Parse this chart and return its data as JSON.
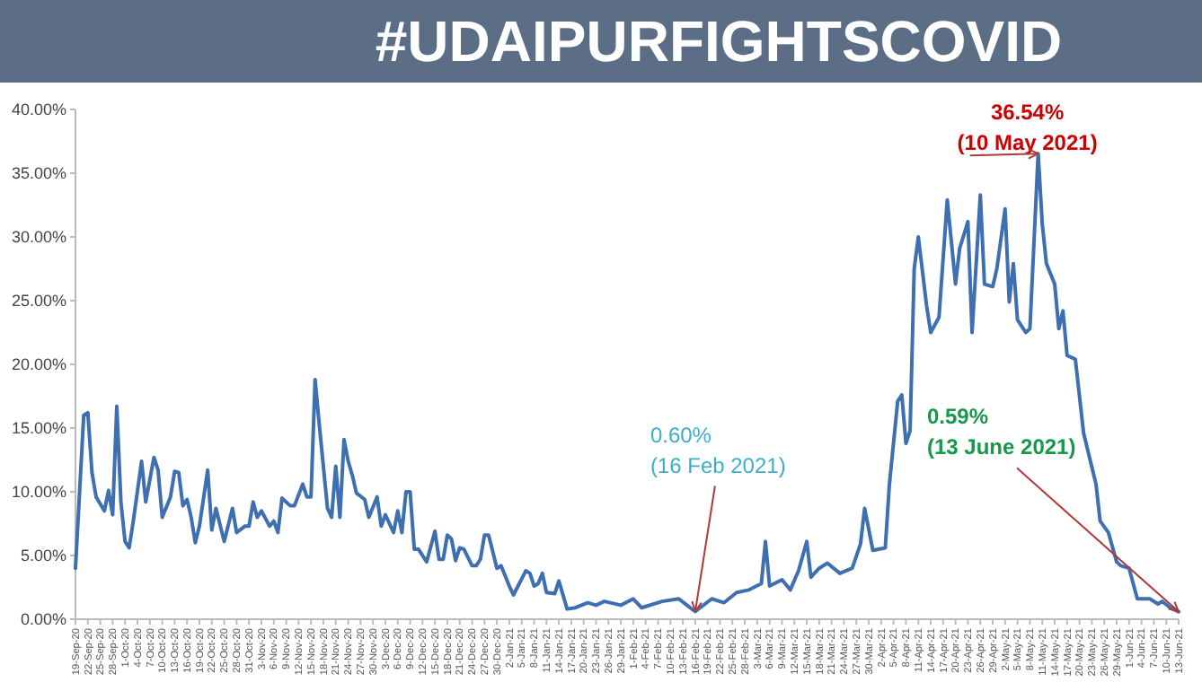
{
  "chart_data": {
    "type": "line",
    "title": "#UDAIPURFIGHTSCOVID",
    "x": [
      "2020-09-19",
      "2020-09-21",
      "2020-09-22",
      "2020-09-23",
      "2020-09-24",
      "2020-09-26",
      "2020-09-27",
      "2020-09-28",
      "2020-09-29",
      "2020-09-30",
      "2020-10-01",
      "2020-10-02",
      "2020-10-03",
      "2020-10-05",
      "2020-10-06",
      "2020-10-08",
      "2020-10-09",
      "2020-10-10",
      "2020-10-12",
      "2020-10-13",
      "2020-10-14",
      "2020-10-15",
      "2020-10-16",
      "2020-10-17",
      "2020-10-18",
      "2020-10-19",
      "2020-10-21",
      "2020-10-22",
      "2020-10-23",
      "2020-10-25",
      "2020-10-27",
      "2020-10-28",
      "2020-10-30",
      "2020-10-31",
      "2020-11-01",
      "2020-11-02",
      "2020-11-03",
      "2020-11-05",
      "2020-11-06",
      "2020-11-07",
      "2020-11-08",
      "2020-11-10",
      "2020-11-11",
      "2020-11-13",
      "2020-11-14",
      "2020-11-15",
      "2020-11-16",
      "2020-11-17",
      "2020-11-19",
      "2020-11-20",
      "2020-11-21",
      "2020-11-22",
      "2020-11-23",
      "2020-11-24",
      "2020-11-25",
      "2020-11-26",
      "2020-11-28",
      "2020-11-29",
      "2020-12-01",
      "2020-12-02",
      "2020-12-03",
      "2020-12-05",
      "2020-12-06",
      "2020-12-07",
      "2020-12-08",
      "2020-12-09",
      "2020-12-10",
      "2020-12-11",
      "2020-12-13",
      "2020-12-15",
      "2020-12-16",
      "2020-12-17",
      "2020-12-18",
      "2020-12-19",
      "2020-12-20",
      "2020-12-21",
      "2020-12-22",
      "2020-12-24",
      "2020-12-25",
      "2020-12-26",
      "2020-12-27",
      "2020-12-28",
      "2020-12-30",
      "2020-12-31",
      "2021-01-02",
      "2021-01-03",
      "2021-01-06",
      "2021-01-07",
      "2021-01-08",
      "2021-01-09",
      "2021-01-10",
      "2021-01-11",
      "2021-01-13",
      "2021-01-14",
      "2021-01-16",
      "2021-01-18",
      "2021-01-21",
      "2021-01-23",
      "2021-01-25",
      "2021-01-29",
      "2021-02-01",
      "2021-02-03",
      "2021-02-08",
      "2021-02-12",
      "2021-02-14",
      "2021-02-16",
      "2021-02-20",
      "2021-02-23",
      "2021-02-26",
      "2021-03-01",
      "2021-03-04",
      "2021-03-05",
      "2021-03-06",
      "2021-03-09",
      "2021-03-11",
      "2021-03-13",
      "2021-03-15",
      "2021-03-16",
      "2021-03-18",
      "2021-03-20",
      "2021-03-23",
      "2021-03-26",
      "2021-03-28",
      "2021-03-29",
      "2021-03-31",
      "2021-04-03",
      "2021-04-04",
      "2021-04-06",
      "2021-04-07",
      "2021-04-08",
      "2021-04-09",
      "2021-04-10",
      "2021-04-11",
      "2021-04-13",
      "2021-04-14",
      "2021-04-16",
      "2021-04-18",
      "2021-04-20",
      "2021-04-21",
      "2021-04-23",
      "2021-04-24",
      "2021-04-26",
      "2021-04-27",
      "2021-04-29",
      "2021-04-30",
      "2021-05-02",
      "2021-05-03",
      "2021-05-04",
      "2021-05-05",
      "2021-05-07",
      "2021-05-08",
      "2021-05-10",
      "2021-05-11",
      "2021-05-12",
      "2021-05-14",
      "2021-05-15",
      "2021-05-16",
      "2021-05-17",
      "2021-05-19",
      "2021-05-21",
      "2021-05-24",
      "2021-05-25",
      "2021-05-27",
      "2021-05-29",
      "2021-05-30",
      "2021-06-01",
      "2021-06-03",
      "2021-06-06",
      "2021-06-08",
      "2021-06-09",
      "2021-06-11",
      "2021-06-13"
    ],
    "series": [
      {
        "color": "#3e6fb0",
        "values": [
          4.0,
          16.0,
          16.2,
          11.5,
          9.6,
          8.5,
          10.1,
          8.2,
          16.7,
          9.2,
          6.1,
          5.6,
          7.7,
          12.4,
          9.2,
          12.7,
          11.7,
          8.0,
          9.6,
          11.6,
          11.5,
          8.9,
          9.4,
          8.0,
          6.0,
          7.3,
          11.7,
          7.0,
          8.7,
          6.1,
          8.7,
          6.8,
          7.3,
          7.3,
          9.2,
          8.0,
          8.5,
          7.3,
          7.7,
          6.8,
          9.5,
          8.9,
          8.9,
          10.6,
          9.6,
          9.6,
          18.8,
          15.3,
          8.7,
          8.0,
          12.0,
          8.0,
          14.1,
          12.4,
          11.3,
          9.9,
          9.4,
          8.0,
          9.6,
          7.3,
          8.2,
          6.8,
          8.5,
          6.8,
          10.0,
          10.0,
          5.5,
          5.5,
          4.5,
          6.9,
          4.7,
          4.7,
          6.6,
          6.3,
          4.6,
          5.6,
          5.5,
          4.2,
          4.2,
          4.7,
          6.6,
          6.6,
          4.0,
          4.2,
          2.6,
          1.9,
          3.8,
          3.6,
          2.6,
          2.8,
          3.6,
          2.1,
          2.0,
          3.0,
          0.8,
          0.9,
          1.3,
          1.1,
          1.4,
          1.1,
          1.6,
          0.9,
          1.4,
          1.6,
          1.1,
          0.6,
          1.6,
          1.3,
          2.1,
          2.3,
          2.8,
          6.1,
          2.6,
          3.1,
          2.3,
          3.8,
          6.1,
          3.3,
          4.0,
          4.4,
          3.6,
          4.0,
          5.9,
          8.7,
          5.4,
          5.6,
          10.6,
          17.1,
          17.6,
          13.8,
          14.8,
          27.5,
          30.0,
          24.6,
          22.5,
          23.7,
          32.9,
          26.3,
          29.1,
          31.2,
          22.5,
          33.3,
          26.3,
          26.1,
          27.5,
          32.2,
          24.9,
          27.9,
          23.5,
          22.5,
          22.8,
          36.54,
          31.0,
          27.9,
          26.3,
          22.8,
          24.2,
          20.7,
          20.4,
          14.6,
          10.6,
          7.7,
          6.8,
          4.5,
          4.2,
          4.0,
          1.6,
          1.6,
          1.2,
          1.4,
          0.9,
          0.59
        ]
      }
    ],
    "xlim": [
      "2020-09-19",
      "2021-06-13"
    ],
    "xticks": [
      {
        "value": "2020-09-19",
        "label": "19-Sep-20"
      },
      {
        "value": "2020-09-22",
        "label": "22-Sep-20"
      },
      {
        "value": "2020-09-25",
        "label": "25-Sep-20"
      },
      {
        "value": "2020-09-28",
        "label": "28-Sep-20"
      },
      {
        "value": "2020-10-01",
        "label": "1-Oct-20"
      },
      {
        "value": "2020-10-04",
        "label": "4-Oct-20"
      },
      {
        "value": "2020-10-07",
        "label": "7-Oct-20"
      },
      {
        "value": "2020-10-10",
        "label": "10-Oct-20"
      },
      {
        "value": "2020-10-13",
        "label": "13-Oct-20"
      },
      {
        "value": "2020-10-16",
        "label": "16-Oct-20"
      },
      {
        "value": "2020-10-19",
        "label": "19-Oct-20"
      },
      {
        "value": "2020-10-22",
        "label": "22-Oct-20"
      },
      {
        "value": "2020-10-25",
        "label": "25-Oct-20"
      },
      {
        "value": "2020-10-28",
        "label": "28-Oct-20"
      },
      {
        "value": "2020-10-31",
        "label": "31-Oct-20"
      },
      {
        "value": "2020-11-03",
        "label": "3-Nov-20"
      },
      {
        "value": "2020-11-06",
        "label": "6-Nov-20"
      },
      {
        "value": "2020-11-09",
        "label": "9-Nov-20"
      },
      {
        "value": "2020-11-12",
        "label": "12-Nov-20"
      },
      {
        "value": "2020-11-15",
        "label": "15-Nov-20"
      },
      {
        "value": "2020-11-18",
        "label": "18-Nov-20"
      },
      {
        "value": "2020-11-21",
        "label": "21-Nov-20"
      },
      {
        "value": "2020-11-24",
        "label": "24-Nov-20"
      },
      {
        "value": "2020-11-27",
        "label": "27-Nov-20"
      },
      {
        "value": "2020-11-30",
        "label": "30-Nov-20"
      },
      {
        "value": "2020-12-03",
        "label": "3-Dec-20"
      },
      {
        "value": "2020-12-06",
        "label": "6-Dec-20"
      },
      {
        "value": "2020-12-09",
        "label": "9-Dec-20"
      },
      {
        "value": "2020-12-12",
        "label": "12-Dec-20"
      },
      {
        "value": "2020-12-15",
        "label": "15-Dec-20"
      },
      {
        "value": "2020-12-18",
        "label": "18-Dec-20"
      },
      {
        "value": "2020-12-21",
        "label": "21-Dec-20"
      },
      {
        "value": "2020-12-24",
        "label": "24-Dec-20"
      },
      {
        "value": "2020-12-27",
        "label": "27-Dec-20"
      },
      {
        "value": "2020-12-30",
        "label": "30-Dec-20"
      },
      {
        "value": "2021-01-02",
        "label": "2-Jan-21"
      },
      {
        "value": "2021-01-05",
        "label": "5-Jan-21"
      },
      {
        "value": "2021-01-08",
        "label": "8-Jan-21"
      },
      {
        "value": "2021-01-11",
        "label": "11-Jan-21"
      },
      {
        "value": "2021-01-14",
        "label": "14-Jan-21"
      },
      {
        "value": "2021-01-17",
        "label": "17-Jan-21"
      },
      {
        "value": "2021-01-20",
        "label": "20-Jan-21"
      },
      {
        "value": "2021-01-23",
        "label": "23-Jan-21"
      },
      {
        "value": "2021-01-26",
        "label": "26-Jan-21"
      },
      {
        "value": "2021-01-29",
        "label": "29-Jan-21"
      },
      {
        "value": "2021-02-01",
        "label": "1-Feb-21"
      },
      {
        "value": "2021-02-04",
        "label": "4-Feb-21"
      },
      {
        "value": "2021-02-07",
        "label": "7-Feb-21"
      },
      {
        "value": "2021-02-10",
        "label": "10-Feb-21"
      },
      {
        "value": "2021-02-13",
        "label": "13-Feb-21"
      },
      {
        "value": "2021-02-16",
        "label": "16-Feb-21"
      },
      {
        "value": "2021-02-19",
        "label": "19-Feb-21"
      },
      {
        "value": "2021-02-22",
        "label": "22-Feb-21"
      },
      {
        "value": "2021-02-25",
        "label": "25-Feb-21"
      },
      {
        "value": "2021-02-28",
        "label": "28-Feb-21"
      },
      {
        "value": "2021-03-03",
        "label": "3-Mar-21"
      },
      {
        "value": "2021-03-06",
        "label": "6-Mar-21"
      },
      {
        "value": "2021-03-09",
        "label": "9-Mar-21"
      },
      {
        "value": "2021-03-12",
        "label": "12-Mar-21"
      },
      {
        "value": "2021-03-15",
        "label": "15-Mar-21"
      },
      {
        "value": "2021-03-18",
        "label": "18-Mar-21"
      },
      {
        "value": "2021-03-21",
        "label": "21-Mar-21"
      },
      {
        "value": "2021-03-24",
        "label": "24-Mar-21"
      },
      {
        "value": "2021-03-27",
        "label": "27-Mar-21"
      },
      {
        "value": "2021-03-30",
        "label": "30-Mar-21"
      },
      {
        "value": "2021-04-02",
        "label": "2-Apr-21"
      },
      {
        "value": "2021-04-05",
        "label": "5-Apr-21"
      },
      {
        "value": "2021-04-08",
        "label": "8-Apr-21"
      },
      {
        "value": "2021-04-11",
        "label": "11-Apr-21"
      },
      {
        "value": "2021-04-14",
        "label": "14-Apr-21"
      },
      {
        "value": "2021-04-17",
        "label": "17-Apr-21"
      },
      {
        "value": "2021-04-20",
        "label": "20-Apr-21"
      },
      {
        "value": "2021-04-23",
        "label": "23-Apr-21"
      },
      {
        "value": "2021-04-26",
        "label": "26-Apr-21"
      },
      {
        "value": "2021-04-29",
        "label": "29-Apr-21"
      },
      {
        "value": "2021-05-02",
        "label": "2-May-21"
      },
      {
        "value": "2021-05-05",
        "label": "5-May-21"
      },
      {
        "value": "2021-05-08",
        "label": "8-May-21"
      },
      {
        "value": "2021-05-11",
        "label": "11-May-21"
      },
      {
        "value": "2021-05-14",
        "label": "14-May-21"
      },
      {
        "value": "2021-05-17",
        "label": "17-May-21"
      },
      {
        "value": "2021-05-20",
        "label": "20-May-21"
      },
      {
        "value": "2021-05-23",
        "label": "23-May-21"
      },
      {
        "value": "2021-05-26",
        "label": "26-May-21"
      },
      {
        "value": "2021-05-29",
        "label": "29-May-21"
      },
      {
        "value": "2021-06-01",
        "label": "1-Jun-21"
      },
      {
        "value": "2021-06-04",
        "label": "4-Jun-21"
      },
      {
        "value": "2021-06-07",
        "label": "7-Jun-21"
      },
      {
        "value": "2021-06-10",
        "label": "10-Jun-21"
      },
      {
        "value": "2021-06-13",
        "label": "13-Jun-21"
      }
    ],
    "ylim": [
      0,
      40
    ],
    "yticks": [
      {
        "value": 0,
        "label": "0.00%"
      },
      {
        "value": 5,
        "label": "5.00%"
      },
      {
        "value": 10,
        "label": "10.00%"
      },
      {
        "value": 15,
        "label": "15.00%"
      },
      {
        "value": 20,
        "label": "20.00%"
      },
      {
        "value": 25,
        "label": "25.00%"
      },
      {
        "value": 30,
        "label": "30.00%"
      },
      {
        "value": 35,
        "label": "35.00%"
      },
      {
        "value": 40,
        "label": "40.00%"
      }
    ],
    "grid": false,
    "annotations": [
      {
        "text": "36.54%\n(10 May 2021)",
        "x": "2021-05-10",
        "y": 36.54
      },
      {
        "text": "0.60%\n(16 Feb 2021)",
        "x": "2021-02-16",
        "y": 0.6
      },
      {
        "text": "0.59%\n(13 June 2021)",
        "x": "2021-06-13",
        "y": 0.59
      }
    ]
  }
}
